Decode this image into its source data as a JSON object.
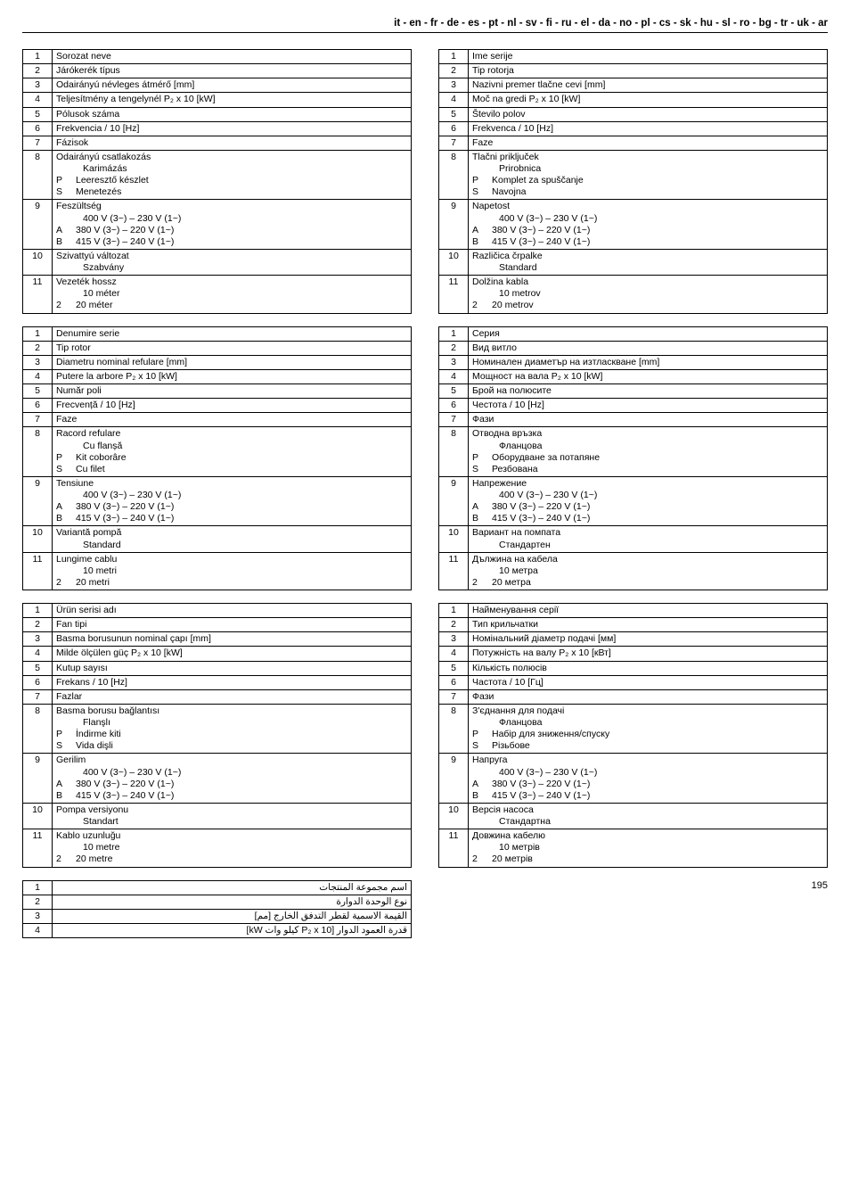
{
  "header": "it - en - fr - de - es - pt - nl - sv - fi - ru - el - da - no - pl - cs - sk - hu - sl - ro - bg - tr - uk - ar",
  "page": "195",
  "hu": {
    "r1": "Sorozat neve",
    "r2": "Járókerék típus",
    "r3": "Odairányú névleges átmérő [mm]",
    "r4": "Teljesítmény a tengelynél P₂ x 10 [kW]",
    "r5": "Pólusok száma",
    "r6": "Frekvencia / 10 [Hz]",
    "r7": "Fázisok",
    "r8a": "Odairányú csatlakozás",
    "r8b": "Karimázás",
    "r8p": "Leeresztő készlet",
    "r8s": "Menetezés",
    "r9a": "Feszültség",
    "r9b": "400 V (3~) – 230 V (1~)",
    "r9c": "380 V (3~) – 220 V (1~)",
    "r9d": "415 V (3~) – 240 V (1~)",
    "r10a": "Szivattyú változat",
    "r10b": "Szabvány",
    "r11a": "Vezeték hossz",
    "r11b": "10 méter",
    "r11c": "20 méter"
  },
  "sl": {
    "r1": "Ime serije",
    "r2": "Tip rotorja",
    "r3": "Nazivni premer tlačne cevi [mm]",
    "r4": "Moč na gredi P₂ x 10 [kW]",
    "r5": "Število polov",
    "r6": "Frekvenca / 10 [Hz]",
    "r7": "Faze",
    "r8a": "Tlačni priključek",
    "r8b": "Prirobnica",
    "r8p": "Komplet za spuščanje",
    "r8s": "Navojna",
    "r9a": "Napetost",
    "r9b": "400 V (3~) – 230 V (1~)",
    "r9c": "380 V (3~) – 220 V (1~)",
    "r9d": "415 V (3~) – 240 V (1~)",
    "r10a": "Različica črpalke",
    "r10b": "Standard",
    "r11a": "Dolžina kabla",
    "r11b": "10 metrov",
    "r11c": "20 metrov"
  },
  "ro": {
    "r1": "Denumire serie",
    "r2": "Tip rotor",
    "r3": "Diametru nominal refulare [mm]",
    "r4": "Putere la arbore P₂ x 10 [kW]",
    "r5": "Număr poli",
    "r6": "Frecvență / 10 [Hz]",
    "r7": "Faze",
    "r8a": "Racord refulare",
    "r8b": "Cu flanșă",
    "r8p": "Kit coborâre",
    "r8s": "Cu filet",
    "r9a": "Tensiune",
    "r9b": "400 V (3~) – 230 V (1~)",
    "r9c": "380 V (3~) – 220 V (1~)",
    "r9d": "415 V (3~) – 240 V (1~)",
    "r10a": "Variantă pompă",
    "r10b": "Standard",
    "r11a": "Lungime cablu",
    "r11b": "10 metri",
    "r11c": "20 metri"
  },
  "bg": {
    "r1": "Серия",
    "r2": "Вид витло",
    "r3": "Номинален диаметър на изтласкване [mm]",
    "r4": "Мощност на вала P₂ x 10 [kW]",
    "r5": "Брой на полюсите",
    "r6": "Честота  / 10 [Hz]",
    "r7": "Фази",
    "r8a": "Отводна връзка",
    "r8b": "Фланцова",
    "r8p": "Оборудване за потапяне",
    "r8s": "Резбована",
    "r9a": "Напрежение",
    "r9b": "400 V (3~) – 230 V (1~)",
    "r9c": "380 V (3~) – 220 V (1~)",
    "r9d": "415 V (3~) – 240 V (1~)",
    "r10a": "Вариант на помпата",
    "r10b": "Стандартен",
    "r11a": "Дължина на кабела",
    "r11b": "10 метра",
    "r11c": "20 метра"
  },
  "tr": {
    "r1": "Ürün serisi adı",
    "r2": "Fan tipi",
    "r3": "Basma borusunun nominal çapı [mm]",
    "r4": "Milde ölçülen güç P₂ x 10 [kW]",
    "r5": "Kutup sayısı",
    "r6": "Frekans / 10 [Hz]",
    "r7": "Fazlar",
    "r8a": "Basma borusu bağlantısı",
    "r8b": "Flanşlı",
    "r8p": "İndirme kiti",
    "r8s": "Vida dişli",
    "r9a": "Gerilim",
    "r9b": "400 V (3~) – 230 V (1~)",
    "r9c": "380 V (3~) – 220 V (1~)",
    "r9d": "415 V (3~) – 240 V (1~)",
    "r10a": "Pompa versiyonu",
    "r10b": "Standart",
    "r11a": "Kablo uzunluğu",
    "r11b": "10 metre",
    "r11c": "20 metre"
  },
  "uk": {
    "r1": "Найменування серії",
    "r2": "Тип крильчатки",
    "r3": "Номінальний діаметр подачі [мм]",
    "r4": "Потужність на валу P₂ x 10 [кВт]",
    "r5": "Кількість полюсів",
    "r6": "Частота / 10 [Гц]",
    "r7": "Фази",
    "r8a": "З'єднання для подачі",
    "r8b": "Фланцова",
    "r8p": "Набір для зниження/спуску",
    "r8s": "Різьбове",
    "r9a": "Напруга",
    "r9b": "400 V (3~) – 230 V (1~)",
    "r9c": "380 V (3~) – 220 V (1~)",
    "r9d": "415 V (3~) – 240 V (1~)",
    "r10a": "Версія насоса",
    "r10b": "Стандартна",
    "r11a": "Довжина кабелю",
    "r11b": "10 метрів",
    "r11c": "20 метрів"
  },
  "ar": {
    "r1": "اسم مجموعة المنتجات",
    "r2": "نوع الوحدة الدوارة",
    "r3": "القيمة الاسمية لقطر التدفق الخارج [مم]",
    "r4": "قدرة العمود الدوار [P₂ x 10 كيلو وات kW]"
  },
  "keys": {
    "P": "P",
    "S": "S",
    "A": "A",
    "B": "B",
    "two": "2"
  },
  "nums": {
    "n1": "1",
    "n2": "2",
    "n3": "3",
    "n4": "4",
    "n5": "5",
    "n6": "6",
    "n7": "7",
    "n8": "8",
    "n9": "9",
    "n10": "10",
    "n11": "11"
  }
}
